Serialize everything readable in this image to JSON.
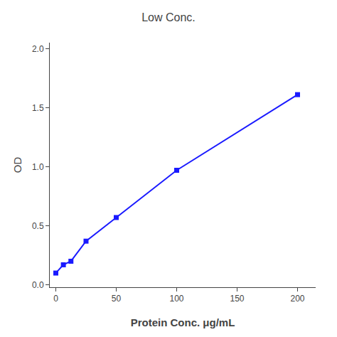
{
  "chart_data": {
    "type": "line",
    "title": "Low Conc.",
    "xlabel": "Protein Conc. μg/mL",
    "ylabel": "OD",
    "x": [
      0,
      6.25,
      12.5,
      25,
      50,
      100,
      200
    ],
    "values": [
      0.1,
      0.17,
      0.2,
      0.37,
      0.57,
      0.97,
      1.61
    ],
    "color": "#1a1aff",
    "marker": "square",
    "line_style": "solid",
    "xlim": [
      -5,
      215
    ],
    "xticks": [
      0,
      50,
      100,
      150,
      200
    ],
    "ylim": [
      -0.02,
      2.05
    ],
    "yticks": [
      {
        "value": 0.0,
        "label": "0.0"
      },
      0.5,
      {
        "value": 1.0,
        "label": "1.0"
      },
      1.5,
      {
        "value": 2.0,
        "label": "2.0"
      }
    ],
    "grid": false
  }
}
